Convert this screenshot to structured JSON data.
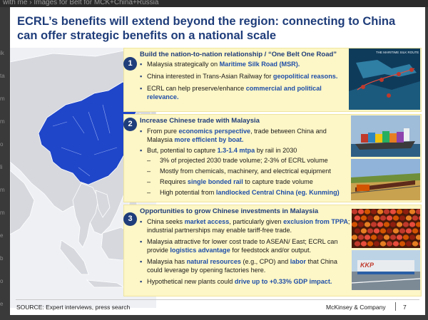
{
  "browser": {
    "tab_fragment": "with me  ›  Images for Belt for MCK+China+Russia"
  },
  "left_edge": [
    "ik",
    "ta",
    "m",
    "m",
    "o",
    "li",
    "m",
    "m",
    "e",
    "b",
    "o",
    "e"
  ],
  "slide": {
    "title": "ECRL’s benefits will extend beyond the region: connecting to China can offer strategic benefits on a national scale",
    "sections": [
      {
        "num": "1",
        "heading": "Build the nation-to-nation relationship / “One Belt One Road”",
        "bullets": [
          {
            "parts": [
              [
                "Malaysia strategically on ",
                false
              ],
              [
                "Maritime Silk Road (MSR).",
                true
              ]
            ]
          },
          {
            "parts": [
              [
                "China interested in Trans-Asian Railway for ",
                false
              ],
              [
                "geopolitical reasons.",
                true
              ]
            ]
          },
          {
            "parts": [
              [
                "ECRL can help preserve/enhance ",
                false
              ],
              [
                "commercial and political relevance.",
                true
              ]
            ]
          }
        ]
      },
      {
        "num": "2",
        "heading": "Increase Chinese trade with Malaysia",
        "bullets": [
          {
            "parts": [
              [
                "From pure ",
                false
              ],
              [
                "economics perspective",
                true
              ],
              [
                ", trade between China and Malaysia ",
                false
              ],
              [
                "more efficient by boat.",
                true
              ]
            ]
          },
          {
            "parts": [
              [
                "But, potential to capture ",
                false
              ],
              [
                "1.3-1.4 mtpa",
                true
              ],
              [
                " by rail in 2030",
                false
              ]
            ]
          }
        ],
        "subbullets": [
          {
            "parts": [
              [
                "3% of projected 2030 trade volume; 2-3% of ECRL volume",
                false
              ]
            ]
          },
          {
            "parts": [
              [
                "Mostly from chemicals, machinery, and electrical equipment",
                false
              ]
            ]
          },
          {
            "parts": [
              [
                "Requires ",
                false
              ],
              [
                "single bonded rail",
                true
              ],
              [
                " to capture trade volume",
                false
              ]
            ]
          },
          {
            "parts": [
              [
                "High potential from ",
                false
              ],
              [
                "landlocked Central China (eg. Kunming)",
                true
              ]
            ]
          }
        ]
      },
      {
        "num": "3",
        "heading": "Opportunities to grow Chinese investments in Malaysia",
        "bullets": [
          {
            "parts": [
              [
                "China seeks  ",
                false
              ],
              [
                "market access",
                true
              ],
              [
                ", particularly given ",
                false
              ],
              [
                "exclusion from TPPA",
                true
              ],
              [
                "; industrial partnerships may enable tariff-free trade.",
                false
              ]
            ]
          },
          {
            "parts": [
              [
                "Malaysia attractive for lower cost trade to ASEAN/ East; ECRL can provide ",
                false
              ],
              [
                "logistics advantage",
                true
              ],
              [
                " for feedstock and/or output.",
                false
              ]
            ]
          },
          {
            "parts": [
              [
                "Malaysia has ",
                false
              ],
              [
                "natural resources",
                true
              ],
              [
                " (e.g., CPO) and ",
                false
              ],
              [
                "labor",
                true
              ],
              [
                " that China could leverage by opening factories here.",
                false
              ]
            ]
          },
          {
            "parts": [
              [
                "Hypothetical new plants could ",
                false
              ],
              [
                "drive up to +0.33% GDP impact.",
                true
              ]
            ]
          }
        ]
      }
    ],
    "photos": {
      "msr_title": "THE MARITIME SILK ROUTE",
      "factory_logo": "KKP"
    },
    "footer": {
      "source": "SOURCE: Expert interviews, press search",
      "brand": "McKinsey & Company",
      "page": "7"
    }
  },
  "colors": {
    "navy": "#1f3d7a",
    "highlight": "#1f4fa8",
    "panel": "#fdf6c6",
    "china": "#1f46c9"
  }
}
